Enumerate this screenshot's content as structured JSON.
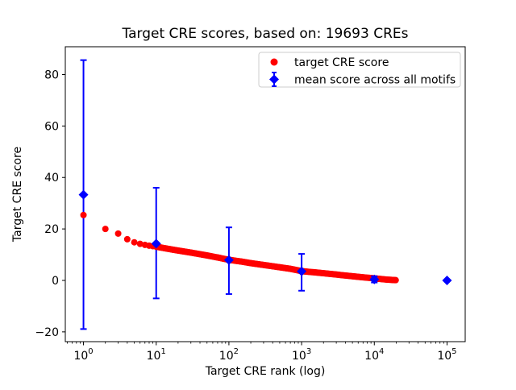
{
  "chart_data": {
    "type": "scatter",
    "title": "Target CRE scores, based on: 19693 CREs",
    "xlabel": "Target CRE rank (log)",
    "ylabel": "Target CRE score",
    "x_scale": "log",
    "grid": false,
    "xlim": [
      0.5623,
      177828
    ],
    "ylim": [
      -23.8,
      90.8
    ],
    "x_tick_exponents": [
      0,
      1,
      2,
      3,
      4,
      5
    ],
    "y_ticks": [
      -20,
      0,
      20,
      40,
      60,
      80
    ],
    "n_cres": 19693,
    "colors": {
      "target_series": "#ff0000",
      "mean_series": "#0000ff",
      "spine": "#000000",
      "legend_border": "#cccccc",
      "background": "#ffffff"
    },
    "legend": {
      "position": "upper right",
      "entries": [
        {
          "label": "target CRE score",
          "marker": "circle",
          "color": "#ff0000"
        },
        {
          "label": "mean score across all motifs",
          "marker": "diamond-errorbar",
          "color": "#0000ff"
        }
      ]
    },
    "series": [
      {
        "name": "target CRE score",
        "render": "dense-scatter-band",
        "marker": "circle",
        "color": "#ff0000",
        "max_rank": 19693,
        "anchor_ranks": [
          1,
          2,
          3,
          4,
          5,
          6,
          7,
          8,
          9,
          10,
          15,
          20,
          30,
          50,
          70,
          100,
          150,
          200,
          300,
          500,
          700,
          1000,
          2000,
          4000,
          7000,
          10000,
          15000,
          19693
        ],
        "anchor_scores": [
          25.4,
          20.0,
          18.2,
          16.0,
          14.8,
          14.2,
          13.8,
          13.5,
          13.3,
          13.1,
          12.2,
          11.6,
          10.8,
          9.7,
          8.9,
          8.0,
          7.3,
          6.7,
          6.0,
          5.1,
          4.5,
          3.6,
          2.8,
          1.9,
          1.2,
          0.8,
          0.3,
          0.1
        ]
      },
      {
        "name": "mean score across all motifs",
        "render": "errorbar",
        "marker": "diamond",
        "color": "#0000ff",
        "x": [
          1,
          10,
          100,
          1000,
          10000,
          100000
        ],
        "mean": [
          33.3,
          14.3,
          7.9,
          3.5,
          0.4,
          0.0
        ],
        "err_low": [
          -18.9,
          -7.0,
          -5.3,
          -4.0,
          -0.8,
          -0.3
        ],
        "err_high": [
          85.6,
          36.0,
          20.6,
          10.3,
          1.6,
          0.3
        ]
      }
    ]
  }
}
